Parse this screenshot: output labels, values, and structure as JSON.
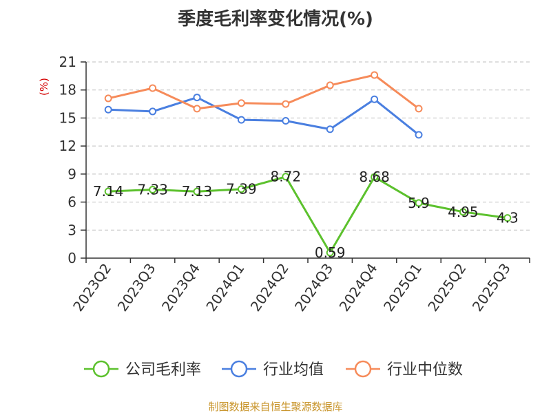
{
  "chart_data": {
    "type": "line",
    "title": "季度毛利率变化情况(%)",
    "ylabel": "(%)",
    "categories": [
      "2023Q2",
      "2023Q3",
      "2023Q4",
      "2024Q1",
      "2024Q2",
      "2024Q3",
      "2024Q4",
      "2025Q1",
      "2025Q2",
      "2025Q3"
    ],
    "ylim": [
      0,
      21
    ],
    "yticks": [
      0,
      3,
      6,
      9,
      12,
      15,
      18,
      21
    ],
    "grid": true,
    "legend_position": "bottom",
    "series": [
      {
        "name": "公司毛利率",
        "color": "#5cc12d",
        "labels": true,
        "values": [
          7.14,
          7.33,
          7.13,
          7.39,
          8.72,
          0.59,
          8.68,
          5.9,
          4.95,
          4.3
        ]
      },
      {
        "name": "行业均值",
        "color": "#4a7fe0",
        "labels": false,
        "values": [
          15.9,
          15.7,
          17.2,
          14.8,
          14.7,
          13.8,
          17.0,
          13.2,
          null,
          null
        ]
      },
      {
        "name": "行业中位数",
        "color": "#f68b5a",
        "labels": false,
        "values": [
          17.1,
          18.2,
          16.0,
          16.6,
          16.5,
          18.5,
          19.6,
          16.0,
          null,
          null
        ]
      }
    ],
    "source": "制图数据来自恒生聚源数据库"
  }
}
